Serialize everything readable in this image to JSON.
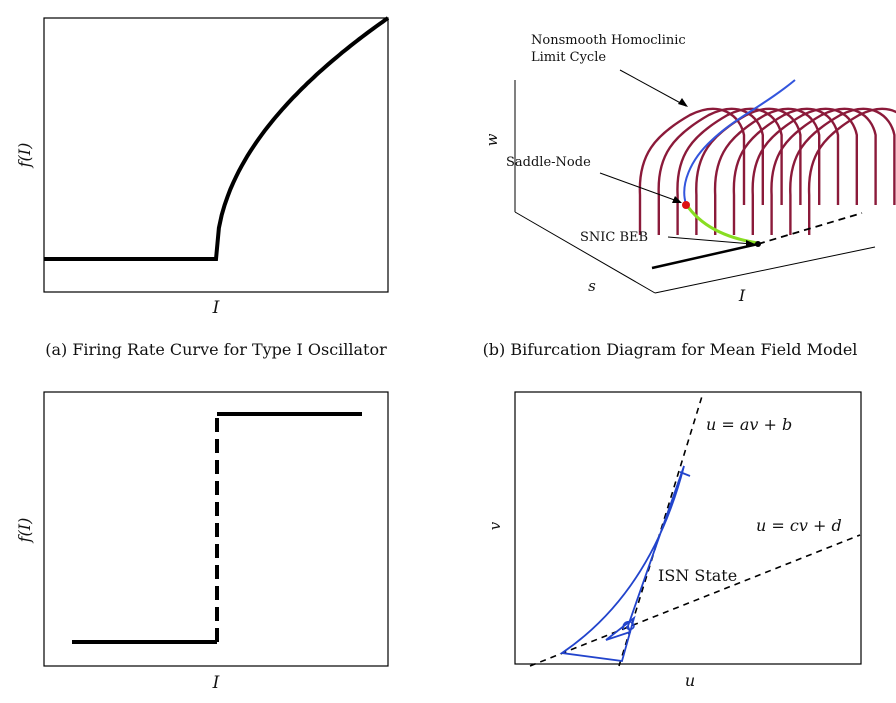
{
  "chart_data": [
    {
      "type": "line",
      "caption": "(a) Firing Rate Curve for Type I Oscillator",
      "xlabel": "I",
      "ylabel": "f(I)",
      "grid": false,
      "x_ticks": [],
      "y_ticks": [],
      "series": [
        {
          "style": "solid",
          "color": "#000000",
          "x": [
            0.0,
            0.5,
            0.5,
            0.55,
            0.6,
            0.7,
            0.8,
            0.9,
            1.0
          ],
          "y": [
            0.0,
            0.0,
            0.0,
            0.3,
            0.42,
            0.6,
            0.74,
            0.87,
            1.0
          ]
        }
      ]
    },
    {
      "type": "line",
      "caption": "(b) Bifurcation Diagram for Mean Field Model",
      "axes": [
        "w",
        "s",
        "I"
      ],
      "annotations": {
        "limit_cycle": "Nonsmooth Homoclinic Limit Cycle",
        "saddle_node": "Saddle-Node",
        "snic": "SNIC BEB"
      },
      "colors": {
        "limit_cycle": "#8b1a3a",
        "branch": "#3355dd",
        "snic_branch": "#88dd22",
        "saddle_node_point": "#dd1111"
      }
    },
    {
      "type": "line",
      "xlabel": "I",
      "ylabel": "f(I)",
      "grid": false,
      "series": [
        {
          "style": "solid",
          "color": "#000000",
          "x": [
            0.0,
            0.5
          ],
          "y": [
            0.0,
            0.0
          ]
        },
        {
          "style": "dashed",
          "color": "#000000",
          "x": [
            0.5,
            0.5
          ],
          "y": [
            0.0,
            1.0
          ]
        },
        {
          "style": "solid",
          "color": "#000000",
          "x": [
            0.5,
            1.0
          ],
          "y": [
            1.0,
            1.0
          ]
        }
      ]
    },
    {
      "type": "line",
      "xlabel": "u",
      "ylabel": "v",
      "annotations": {
        "line1": "u = av + b",
        "line2": "u = cv + d",
        "state": "ISN State"
      },
      "colors": {
        "nullclines": "#000000",
        "trajectory": "#2244cc"
      }
    }
  ]
}
